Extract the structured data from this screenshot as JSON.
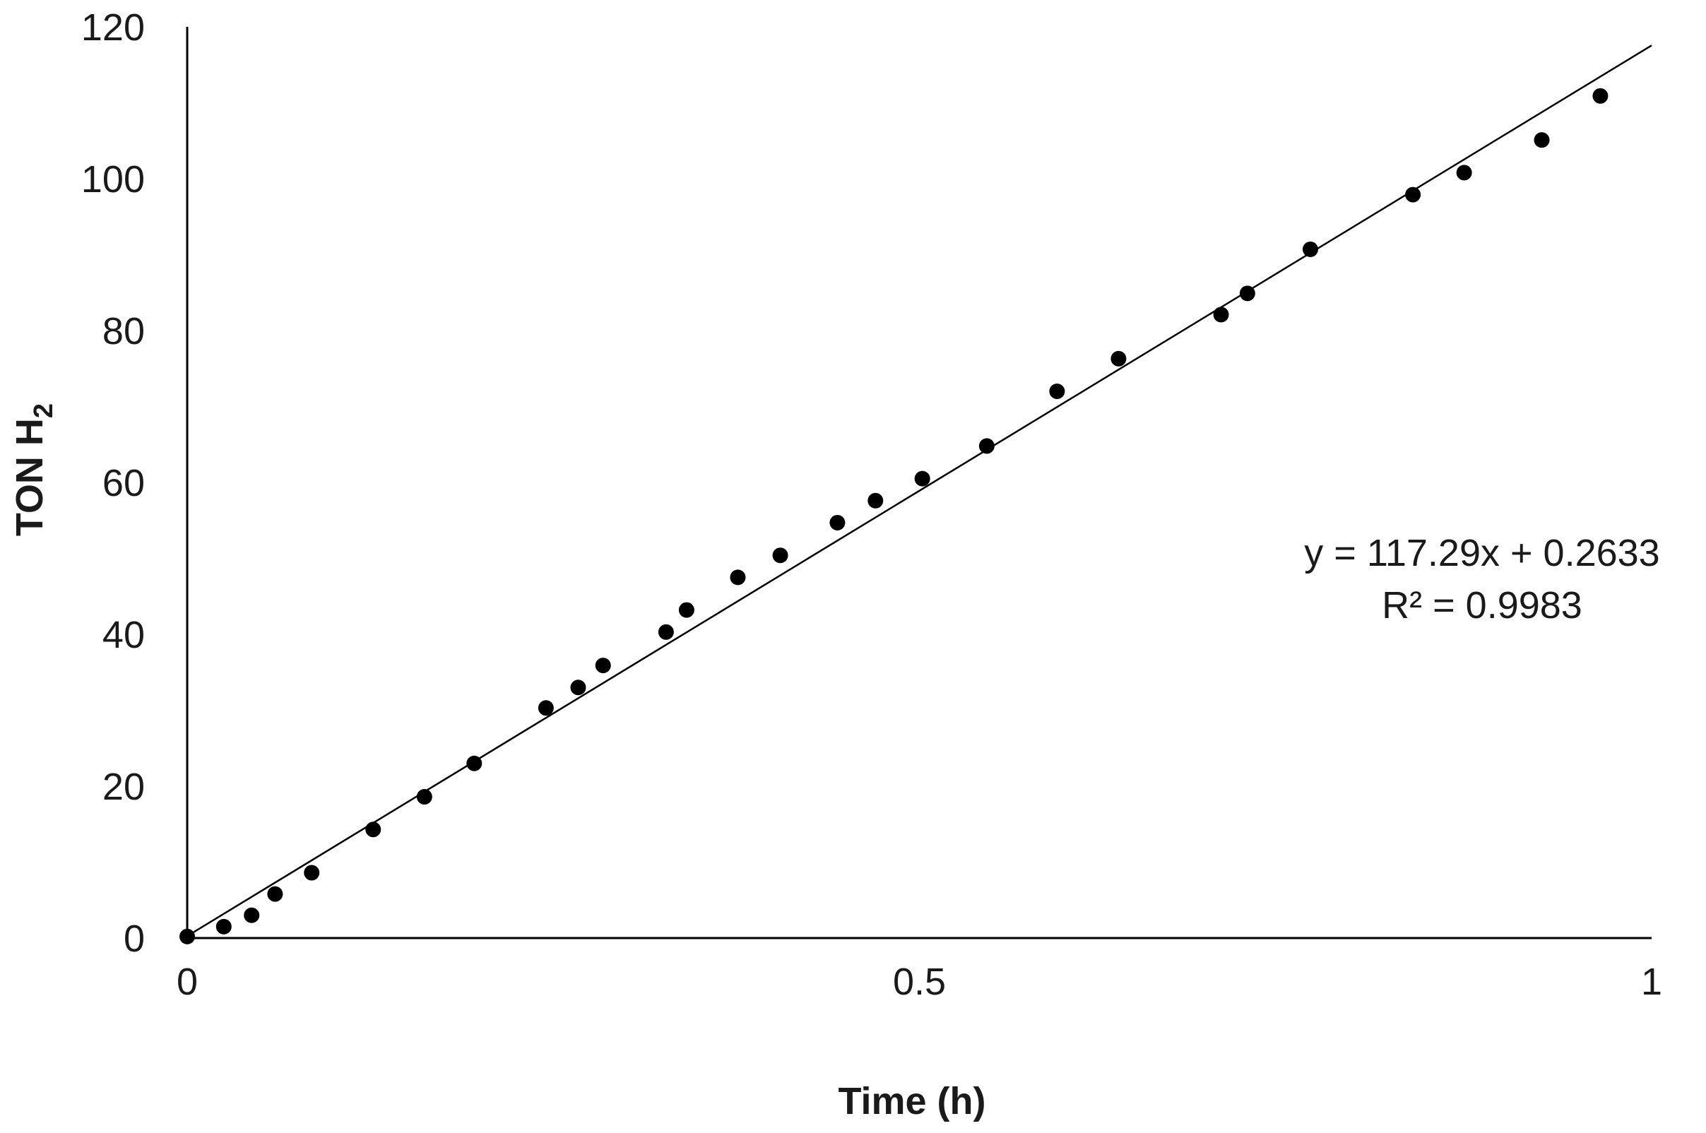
{
  "chart_data": {
    "type": "scatter",
    "title": "",
    "xlabel": "Time (h)",
    "ylabel": "TON H",
    "ylabel_subscript": "2",
    "xlim": [
      0,
      1
    ],
    "ylim": [
      0,
      120
    ],
    "x_ticks": [
      {
        "value": 0,
        "label": "0"
      },
      {
        "value": 0.5,
        "label": "0.5"
      },
      {
        "value": 1,
        "label": "1"
      }
    ],
    "y_ticks": [
      {
        "value": 0,
        "label": "0"
      },
      {
        "value": 20,
        "label": "20"
      },
      {
        "value": 40,
        "label": "40"
      },
      {
        "value": 60,
        "label": "60"
      },
      {
        "value": 80,
        "label": "80"
      },
      {
        "value": 100,
        "label": "100"
      },
      {
        "value": 120,
        "label": "120"
      }
    ],
    "grid": false,
    "marker_color": "#000000",
    "series": [
      {
        "points": [
          {
            "x": 0.0,
            "y": 0.2
          },
          {
            "x": 0.025,
            "y": 1.5
          },
          {
            "x": 0.044,
            "y": 3.0
          },
          {
            "x": 0.06,
            "y": 5.8
          },
          {
            "x": 0.085,
            "y": 8.6
          },
          {
            "x": 0.127,
            "y": 14.3
          },
          {
            "x": 0.162,
            "y": 18.6
          },
          {
            "x": 0.196,
            "y": 23.0
          },
          {
            "x": 0.245,
            "y": 30.3
          },
          {
            "x": 0.267,
            "y": 33.0
          },
          {
            "x": 0.284,
            "y": 35.9
          },
          {
            "x": 0.327,
            "y": 40.3
          },
          {
            "x": 0.341,
            "y": 43.2
          },
          {
            "x": 0.376,
            "y": 47.5
          },
          {
            "x": 0.405,
            "y": 50.4
          },
          {
            "x": 0.444,
            "y": 54.7
          },
          {
            "x": 0.47,
            "y": 57.6
          },
          {
            "x": 0.502,
            "y": 60.5
          },
          {
            "x": 0.546,
            "y": 64.8
          },
          {
            "x": 0.594,
            "y": 72.0
          },
          {
            "x": 0.636,
            "y": 76.3
          },
          {
            "x": 0.706,
            "y": 82.1
          },
          {
            "x": 0.724,
            "y": 84.9
          },
          {
            "x": 0.767,
            "y": 90.7
          },
          {
            "x": 0.837,
            "y": 97.9
          },
          {
            "x": 0.872,
            "y": 100.8
          },
          {
            "x": 0.925,
            "y": 105.1
          },
          {
            "x": 0.965,
            "y": 110.9
          }
        ]
      }
    ],
    "trendline": {
      "slope": 117.29,
      "intercept": 0.2633,
      "x_range": [
        0,
        1
      ],
      "color": "#000000"
    },
    "annotations": {
      "equation": "y = 117.29x + 0.2633",
      "r_squared": "R² = 0.9983"
    }
  }
}
